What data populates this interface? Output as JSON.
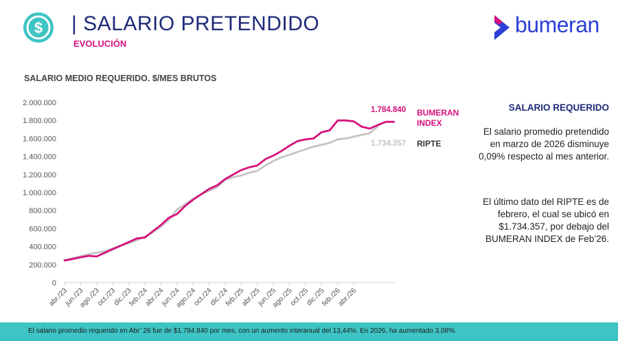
{
  "header": {
    "title": "| SALARIO PRETENDIDO",
    "subtitle": "EVOLUCIÓN",
    "brand": "bumeran",
    "dollar_icon": "dollar-coin-icon",
    "brand_icon": "chevron-logo-icon"
  },
  "colors": {
    "navy": "#1e2a78",
    "magenta": "#d4117c",
    "grey": "#c4c4c4",
    "teal": "#3ec4c4",
    "brand_blue": "#2d3fd6"
  },
  "chart_heading": "SALARIO MEDIO REQUERIDO. $/MES BRUTOS",
  "chart_data": {
    "type": "line",
    "title": "SALARIO MEDIO REQUERIDO. $/MES BRUTOS",
    "ylim": [
      0,
      2000000
    ],
    "y_ticks": [
      "0",
      "200.000",
      "400.000",
      "600.000",
      "800.000",
      "1.000.000",
      "1.200.000",
      "1.400.000",
      "1.600.000",
      "1.800.000",
      "2.000.000"
    ],
    "y_tick_values": [
      0,
      200000,
      400000,
      600000,
      800000,
      1000000,
      1200000,
      1400000,
      1600000,
      1800000,
      2000000
    ],
    "x_labels": [
      "abr./23",
      "jun./23",
      "ago./23",
      "oct./23",
      "dic./23",
      "feb./24",
      "abr./24",
      "jun./24",
      "ago./24",
      "oct./24",
      "dic./24",
      "feb./25",
      "abr./25",
      "jun./25",
      "ago./25",
      "oct./25",
      "dic./25",
      "feb./26",
      "abr./26"
    ],
    "grid": false,
    "series": [
      {
        "name": "BUMERAN INDEX",
        "end_label": "1.784.840",
        "color": "#d4117c",
        "values": [
          245000,
          262000,
          280000,
          297000,
          290000,
          330000,
          370000,
          410000,
          450000,
          490000,
          500000,
          570000,
          640000,
          720000,
          760000,
          850000,
          920000,
          980000,
          1040000,
          1080000,
          1150000,
          1200000,
          1250000,
          1280000,
          1300000,
          1370000,
          1410000,
          1460000,
          1520000,
          1570000,
          1590000,
          1600000,
          1670000,
          1690000,
          1800000,
          1800000,
          1790000,
          1730000,
          1710000,
          1750000,
          1784840,
          1784840
        ]
      },
      {
        "name": "RIPTE",
        "end_label": "1.734.357",
        "color": "#c4c4c4",
        "values": [
          250000,
          270000,
          292000,
          315000,
          330000,
          350000,
          380000,
          410000,
          440000,
          470000,
          510000,
          560000,
          620000,
          700000,
          810000,
          870000,
          930000,
          980000,
          1020000,
          1060000,
          1140000,
          1170000,
          1190000,
          1220000,
          1240000,
          1300000,
          1350000,
          1390000,
          1420000,
          1450000,
          1480000,
          1510000,
          1530000,
          1550000,
          1590000,
          1600000,
          1620000,
          1640000,
          1660000,
          1734357
        ]
      }
    ]
  },
  "side_panel": {
    "title": "SALARIO REQUERIDO",
    "paragraph1": "El salario promedio pretendido en marzo de 2026 disminuye 0,09% respecto al mes anterior.",
    "paragraph2": "El último dato del RIPTE es de febrero, el cual se ubicó en $1.734.357, por debajo del BUMERAN INDEX de Feb’26."
  },
  "footer": {
    "text": "El salario promedio requerido en Abr’ 26 fue de $1.784.840 por mes, con un aumento interanual del 13,44%. En 2026, ha aumentado 3,08%."
  }
}
